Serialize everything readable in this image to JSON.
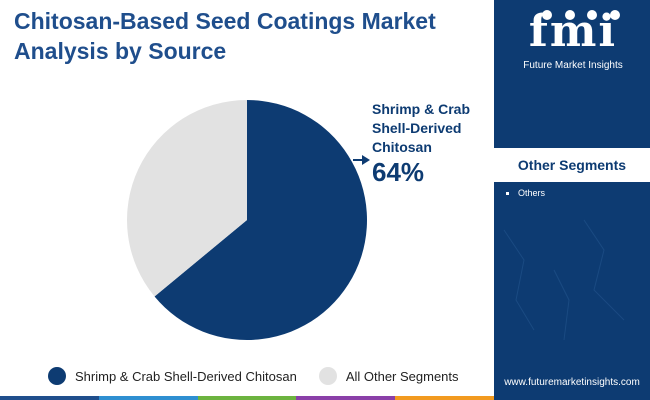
{
  "title_lines": [
    "Chitosan-Based Seed Coatings Market",
    "Analysis by Source"
  ],
  "chart_data": {
    "type": "pie",
    "title": "Chitosan-Based Seed Coatings Market Analysis by Source",
    "slices": [
      {
        "label": "Shrimp & Crab Shell-Derived Chitosan",
        "value": 64,
        "color": "#0d3b72"
      },
      {
        "label": "All Other Segments",
        "value": 36,
        "color": "#e2e2e2"
      }
    ],
    "legend_position": "bottom"
  },
  "callout": {
    "label_lines": [
      "Shrimp & Crab",
      "Shell-Derived",
      "Chitosan"
    ],
    "value": "64%"
  },
  "legend": [
    {
      "label": "Shrimp & Crab Shell-Derived Chitosan",
      "color": "#0d3b72"
    },
    {
      "label": "All Other Segments",
      "color": "#e2e2e2"
    }
  ],
  "side_panel": {
    "logo_text": "fmi",
    "logo_caption": "Future Market Insights",
    "segments_header": "Other Segments",
    "segments": [
      "Others"
    ],
    "website": "www.futuremarketinsights.com",
    "background": "#0d3b72"
  },
  "bottom_bar_colors": [
    "#1f4e8c",
    "#2e8fd1",
    "#6cb33f",
    "#8a3fa8",
    "#f29a1f"
  ]
}
